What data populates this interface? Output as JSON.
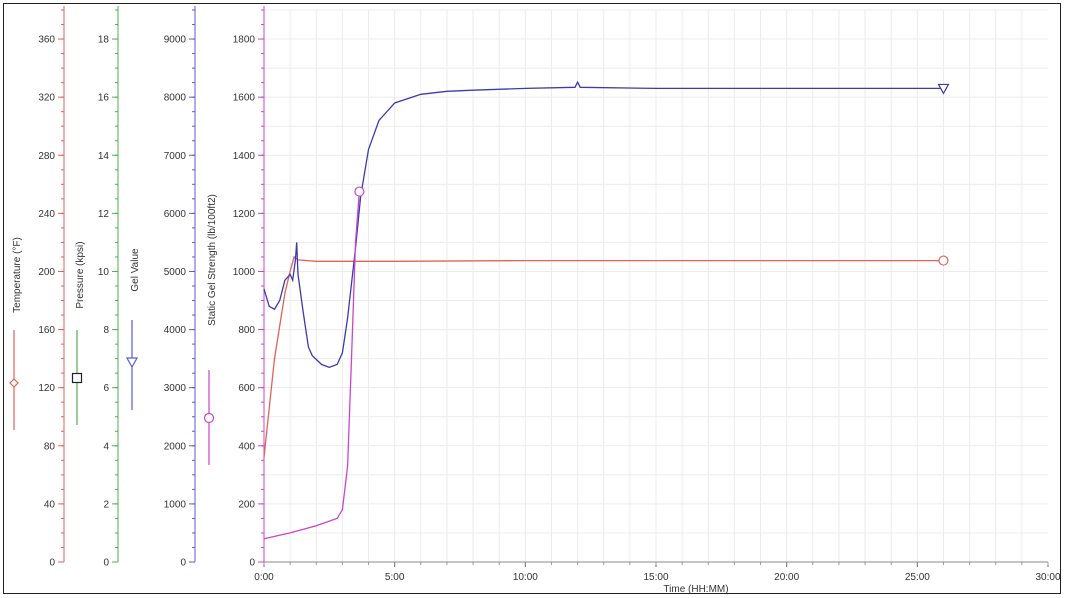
{
  "chart_data": {
    "type": "line",
    "x_label": "Time (HH:MM)",
    "x_ticks": [
      "0:00",
      "5:00",
      "10:00",
      "15:00",
      "20:00",
      "25:00",
      "30:00"
    ],
    "x_range_min": [
      0,
      30
    ],
    "grid": true,
    "axes": [
      {
        "id": "temp",
        "label": "Temperature (°F)",
        "color": "#e2625a",
        "range": [
          0,
          380
        ],
        "ticks": [
          0,
          40,
          80,
          120,
          160,
          200,
          240,
          280,
          320,
          360
        ],
        "marker": "diamond"
      },
      {
        "id": "press",
        "label": "Pressure (kpsi)",
        "color": "#4fae4f",
        "range": [
          0,
          19
        ],
        "ticks": [
          0,
          2,
          4,
          6,
          8,
          10,
          12,
          14,
          16,
          18
        ],
        "marker": "square"
      },
      {
        "id": "gel",
        "label": "Gel Value",
        "color": "#5b5bd6",
        "range": [
          0,
          9500
        ],
        "ticks": [
          0,
          1000,
          2000,
          3000,
          4000,
          5000,
          6000,
          7000,
          8000,
          9000
        ],
        "marker": "triangle-down"
      },
      {
        "id": "sgs",
        "label": "Static Gel Strength (lb/100ft2)",
        "color": "#cc44cc",
        "range": [
          0,
          1900
        ],
        "ticks": [
          0,
          200,
          400,
          600,
          800,
          1000,
          1200,
          1400,
          1600,
          1800
        ],
        "marker": "circle"
      }
    ],
    "series": [
      {
        "axis": "temp",
        "color": "#e2625a",
        "marker": "circle",
        "marker_at": 26,
        "points": [
          [
            0,
            72
          ],
          [
            0.4,
            140
          ],
          [
            0.8,
            185
          ],
          [
            1.0,
            200
          ],
          [
            1.15,
            210
          ],
          [
            1.3,
            208
          ],
          [
            2,
            207
          ],
          [
            3,
            207
          ],
          [
            5,
            207
          ],
          [
            10,
            207.5
          ],
          [
            15,
            207.5
          ],
          [
            20,
            207.5
          ],
          [
            26,
            207.5
          ]
        ]
      },
      {
        "axis": "gel",
        "color": "#3b3bb0",
        "marker": "triangle-down",
        "marker_at": 26,
        "points": [
          [
            0,
            4700
          ],
          [
            0.2,
            4400
          ],
          [
            0.4,
            4350
          ],
          [
            0.6,
            4500
          ],
          [
            0.8,
            4850
          ],
          [
            1.0,
            4950
          ],
          [
            1.1,
            4850
          ],
          [
            1.2,
            5200
          ],
          [
            1.25,
            5500
          ],
          [
            1.3,
            4950
          ],
          [
            1.5,
            4300
          ],
          [
            1.7,
            3700
          ],
          [
            1.85,
            3550
          ],
          [
            2.2,
            3400
          ],
          [
            2.5,
            3350
          ],
          [
            2.8,
            3400
          ],
          [
            3.0,
            3600
          ],
          [
            3.2,
            4200
          ],
          [
            3.5,
            5400
          ],
          [
            3.7,
            6300
          ],
          [
            4.0,
            7100
          ],
          [
            4.4,
            7600
          ],
          [
            5.0,
            7900
          ],
          [
            6.0,
            8050
          ],
          [
            7.0,
            8100
          ],
          [
            8.0,
            8120
          ],
          [
            10.0,
            8150
          ],
          [
            11.9,
            8170
          ],
          [
            12.0,
            8260
          ],
          [
            12.1,
            8170
          ],
          [
            15.0,
            8150
          ],
          [
            20.0,
            8150
          ],
          [
            26.0,
            8150
          ]
        ]
      },
      {
        "axis": "sgs",
        "color": "#cc44cc",
        "marker": "circle",
        "marker_at": 3.65,
        "points": [
          [
            0,
            80
          ],
          [
            1,
            100
          ],
          [
            2,
            125
          ],
          [
            2.8,
            150
          ],
          [
            3.0,
            180
          ],
          [
            3.2,
            330
          ],
          [
            3.35,
            700
          ],
          [
            3.5,
            1100
          ],
          [
            3.65,
            1275
          ]
        ]
      }
    ]
  }
}
